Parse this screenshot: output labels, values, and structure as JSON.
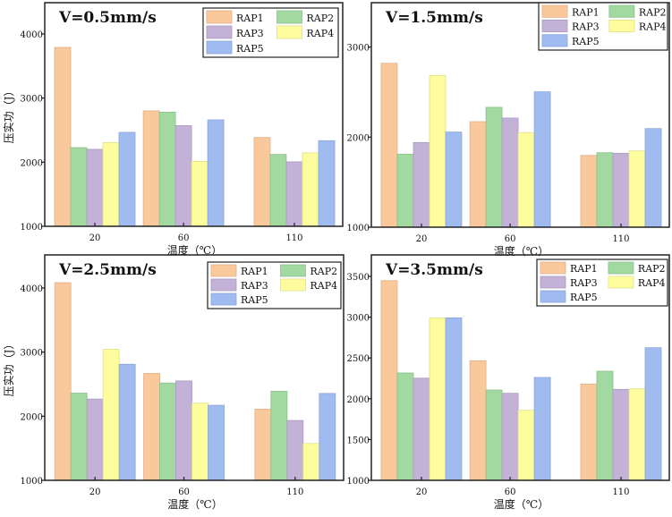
{
  "chart_data": [
    {
      "type": "bar",
      "title": "V=0.5mm/s",
      "xlabel": "温度（℃）",
      "ylabel": "压实功（J）",
      "categories": [
        "20",
        "60",
        "110"
      ],
      "x_values": [
        20,
        60,
        110
      ],
      "yticks": [
        1000,
        2000,
        3000,
        4000
      ],
      "ylim": [
        1000,
        4400
      ],
      "series": [
        {
          "name": "RAP1",
          "values": [
            3790,
            2800,
            2385
          ]
        },
        {
          "name": "RAP2",
          "values": [
            2227,
            2780,
            2120
          ]
        },
        {
          "name": "RAP3",
          "values": [
            2200,
            2570,
            2005
          ]
        },
        {
          "name": "RAP4",
          "values": [
            2306,
            2013,
            2145
          ]
        },
        {
          "name": "RAP5",
          "values": [
            2465,
            2660,
            2335
          ]
        }
      ],
      "legend": "top-right",
      "show_ylabel": true
    },
    {
      "type": "bar",
      "title": "V=1.5mm/s",
      "xlabel": "温度（℃）",
      "ylabel": "",
      "categories": [
        "20",
        "60",
        "110"
      ],
      "x_values": [
        20,
        60,
        110
      ],
      "yticks": [
        1000,
        2000,
        3000
      ],
      "ylim": [
        1000,
        3500
      ],
      "series": [
        {
          "name": "RAP1",
          "values": [
            2820,
            2172,
            1797
          ]
        },
        {
          "name": "RAP2",
          "values": [
            1811,
            2331,
            1827
          ]
        },
        {
          "name": "RAP3",
          "values": [
            1940,
            2212,
            1821
          ]
        },
        {
          "name": "RAP4",
          "values": [
            2685,
            2050,
            1847
          ]
        },
        {
          "name": "RAP5",
          "values": [
            2056,
            2503,
            2095
          ]
        }
      ],
      "legend": "top-right",
      "show_ylabel": false
    },
    {
      "type": "bar",
      "title": "V=2.5mm/s",
      "xlabel": "温度（℃）",
      "ylabel": "压实功（J）",
      "categories": [
        "20",
        "60",
        "110"
      ],
      "x_values": [
        20,
        60,
        110
      ],
      "yticks": [
        1000,
        2000,
        3000,
        4000
      ],
      "ylim": [
        1000,
        4500
      ],
      "series": [
        {
          "name": "RAP1",
          "values": [
            4082,
            2667,
            2110
          ]
        },
        {
          "name": "RAP2",
          "values": [
            2360,
            2518,
            2389
          ]
        },
        {
          "name": "RAP3",
          "values": [
            2267,
            2550,
            1933
          ]
        },
        {
          "name": "RAP4",
          "values": [
            3043,
            2202,
            1575
          ]
        },
        {
          "name": "RAP5",
          "values": [
            2810,
            2170,
            2355
          ]
        }
      ],
      "legend": "top-right",
      "show_ylabel": true
    },
    {
      "type": "bar",
      "title": "V=3.5mm/s",
      "xlabel": "温度（℃）",
      "ylabel": "",
      "categories": [
        "20",
        "60",
        "110"
      ],
      "x_values": [
        20,
        60,
        110
      ],
      "yticks": [
        1000,
        1500,
        2000,
        2500,
        3000,
        3500
      ],
      "ylim": [
        1000,
        3750
      ],
      "series": [
        {
          "name": "RAP1",
          "values": [
            3448,
            2466,
            2181
          ]
        },
        {
          "name": "RAP2",
          "values": [
            2316,
            2107,
            2338
          ]
        },
        {
          "name": "RAP3",
          "values": [
            2253,
            2067,
            2115
          ]
        },
        {
          "name": "RAP4",
          "values": [
            2992,
            1859,
            2122
          ]
        },
        {
          "name": "RAP5",
          "values": [
            2992,
            2261,
            2626
          ]
        }
      ],
      "legend": "top-right",
      "show_ylabel": false
    }
  ],
  "colors": {
    "RAP1": "#f9c89b",
    "RAP2": "#a2d9a0",
    "RAP3": "#c3b1d8",
    "RAP4": "#fdfd9e",
    "RAP5": "#9fbbef"
  },
  "bar_edge_colors": {
    "RAP1": "#e0b08a",
    "RAP2": "#8cc08b",
    "RAP3": "#aa9bc0",
    "RAP4": "#e0e08a",
    "RAP5": "#8aa6d8"
  }
}
